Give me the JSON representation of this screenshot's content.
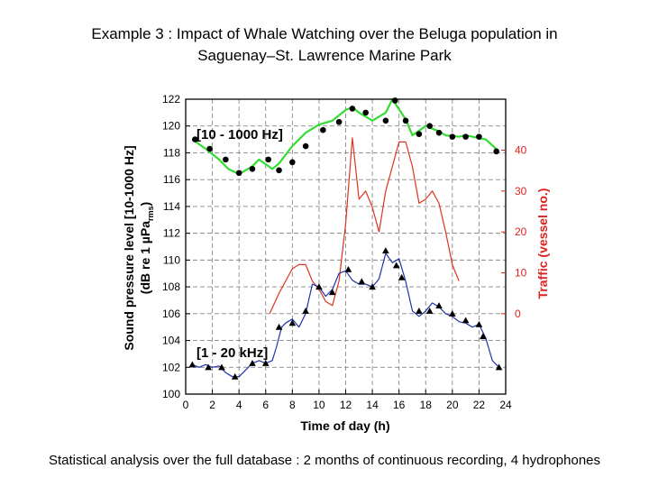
{
  "slide": {
    "title_line1": "Example 3 : Impact of Whale Watching over the Beluga population in",
    "title_line2": "Saguenay–St. Lawrence Marine Park",
    "caption": "Statistical analysis over the full database : 2 months of continuous recording, 4 hydrophones"
  },
  "chart_data": {
    "type": "line",
    "xlabel": "Time of day (h)",
    "ylabel_line1": "Sound pressure level [10-1000 Hz]",
    "ylabel_line2": "(dB re 1 µPa",
    "ylabel_sub": "rms",
    "ylabel_close": ")",
    "y2label": "Traffic (vessel no.)",
    "xlim": [
      0,
      24
    ],
    "ylim": [
      100,
      122
    ],
    "y2lim": [
      0,
      40
    ],
    "x_ticks": [
      0,
      2,
      4,
      6,
      8,
      10,
      12,
      14,
      16,
      18,
      20,
      22,
      24
    ],
    "x_tick_labels": [
      "0",
      "2",
      "4",
      "6",
      "8",
      "10",
      "12",
      "14",
      "16",
      "18",
      "20",
      "22",
      "24"
    ],
    "y_ticks": [
      100,
      102,
      104,
      106,
      108,
      110,
      112,
      114,
      116,
      118,
      120,
      122
    ],
    "y_tick_labels": [
      "100",
      "102",
      "104",
      "106",
      "108",
      "110",
      "112",
      "114",
      "116",
      "118",
      "120",
      "122"
    ],
    "y2_ticks": [
      0,
      10,
      20,
      30,
      40
    ],
    "y2_tick_labels": [
      "0",
      "10",
      "20",
      "30",
      "40"
    ],
    "grid": true,
    "annotations": {
      "low_freq": "[10 - 1000 Hz]",
      "high_freq": "[1 - 20 kHz]"
    },
    "colors": {
      "low_freq": "#33dd33",
      "traffic": "#dd3322",
      "high_freq": "#2233aa",
      "y2_axis": "#dd2222",
      "grid": "#888888"
    },
    "series": [
      {
        "key": "low_freq",
        "axis": "left",
        "marker": "circle",
        "x": [
          0.5,
          1.5,
          2.5,
          3.2,
          4.0,
          5.0,
          5.5,
          6.5,
          7.0,
          8.0,
          9.0,
          10.0,
          11.0,
          12.0,
          12.5,
          13.0,
          14.0,
          15.0,
          15.5,
          16.5,
          17.0,
          18.0,
          19.0,
          19.5,
          20.5,
          21.0,
          22.0,
          22.5,
          23.5
        ],
        "y": [
          119.0,
          118.3,
          117.5,
          116.8,
          116.4,
          117.0,
          117.5,
          116.8,
          117.2,
          118.5,
          119.5,
          120.1,
          120.4,
          121.2,
          121.4,
          121.0,
          120.4,
          121.0,
          122.0,
          120.5,
          119.3,
          120.0,
          119.6,
          119.3,
          119.2,
          119.3,
          119.1,
          119.0,
          118.1
        ],
        "markers_x": [
          0.7,
          1.8,
          3.0,
          4.0,
          5.0,
          6.2,
          7.0,
          8.0,
          9.0,
          10.3,
          11.5,
          12.5,
          13.5,
          15.0,
          15.7,
          16.5,
          17.5,
          18.3,
          19.0,
          20.0,
          21.0,
          22.0,
          23.3
        ],
        "markers_y": [
          119.0,
          118.3,
          117.5,
          116.5,
          116.8,
          117.5,
          116.7,
          117.3,
          118.5,
          119.7,
          120.3,
          121.3,
          121.0,
          120.4,
          121.9,
          120.4,
          119.4,
          120.0,
          119.5,
          119.2,
          119.2,
          119.2,
          118.1
        ]
      },
      {
        "key": "traffic",
        "axis": "right",
        "marker": "none",
        "x": [
          6.3,
          7.0,
          7.5,
          8.0,
          8.5,
          9.0,
          9.5,
          10.0,
          10.5,
          11.0,
          11.5,
          12.0,
          12.5,
          13.0,
          13.5,
          14.0,
          14.5,
          15.0,
          15.5,
          16.0,
          16.5,
          17.0,
          17.5,
          18.0,
          18.5,
          19.0,
          19.5,
          20.0,
          20.5
        ],
        "y": [
          0,
          5,
          8,
          11,
          12,
          12,
          8,
          6,
          3,
          2,
          8,
          22,
          43,
          28,
          30,
          26,
          20,
          30,
          36,
          42,
          42,
          36,
          27,
          28,
          30,
          27,
          20,
          12,
          8
        ]
      },
      {
        "key": "high_freq",
        "axis": "left",
        "marker": "triangle",
        "x": [
          0.5,
          1.0,
          1.5,
          2.0,
          2.5,
          3.0,
          3.5,
          4.0,
          4.5,
          5.0,
          5.5,
          6.0,
          6.5,
          6.8,
          7.2,
          7.5,
          8.0,
          8.5,
          9.0,
          9.5,
          10.0,
          10.5,
          11.0,
          11.5,
          12.0,
          12.5,
          13.0,
          13.5,
          14.0,
          14.5,
          15.0,
          15.5,
          16.0,
          16.5,
          17.0,
          17.5,
          18.0,
          18.5,
          19.0,
          19.5,
          20.0,
          20.5,
          21.0,
          21.5,
          22.0,
          22.5,
          23.0,
          23.5
        ],
        "y": [
          102.2,
          102.0,
          102.2,
          102.0,
          102.1,
          101.6,
          101.3,
          101.3,
          101.8,
          102.3,
          102.5,
          102.3,
          102.5,
          103.5,
          105.0,
          105.3,
          105.6,
          105.0,
          106.0,
          108.2,
          108.0,
          107.3,
          107.8,
          109.0,
          109.2,
          108.5,
          108.2,
          108.2,
          108.0,
          108.6,
          110.5,
          109.8,
          110.1,
          108.4,
          106.2,
          105.8,
          106.2,
          106.8,
          106.5,
          106.0,
          105.8,
          105.4,
          105.3,
          105.0,
          105.2,
          104.2,
          102.5,
          102.0
        ],
        "markers_x": [
          0.5,
          1.7,
          2.7,
          3.7,
          5.0,
          6.0,
          7.0,
          8.0,
          9.0,
          10.0,
          11.0,
          12.2,
          13.2,
          14.0,
          15.0,
          15.8,
          16.2,
          17.5,
          18.3,
          19.0,
          20.0,
          21.0,
          22.0,
          22.3,
          23.5
        ],
        "markers_y": [
          102.2,
          102.0,
          102.0,
          101.3,
          102.3,
          102.3,
          105.0,
          105.3,
          106.2,
          108.0,
          107.6,
          109.3,
          108.4,
          108.0,
          110.7,
          109.6,
          108.7,
          106.2,
          106.2,
          106.6,
          106.0,
          105.5,
          105.2,
          104.3,
          102.0
        ]
      }
    ]
  }
}
